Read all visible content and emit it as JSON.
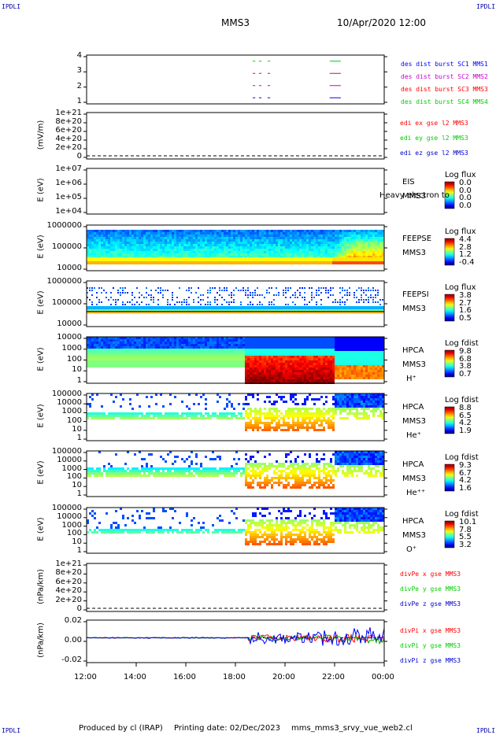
{
  "header": {
    "corner_tl": "IPDLI",
    "corner_tr": "IPDLI",
    "corner_bl": "IPDLI",
    "corner_br": "IPDLI",
    "title": "MMS3",
    "date": "10/Apr/2020 12:00"
  },
  "footer": {
    "produced": "Produced by cl (IRAP)",
    "printing": "Printing date: 02/Dec/2023",
    "file": "mms_mms3_srvy_vue_web2.cl"
  },
  "colors": {
    "mms1": "#0000ff",
    "mms2": "#cc00cc",
    "mms3": "#ff0000",
    "mms4": "#00cc00",
    "text_blue": "#0000aa"
  },
  "chart_data": [
    {
      "type": "line",
      "id": "burst",
      "yticks": [
        "4",
        "3",
        "2",
        "1"
      ],
      "ylim": [
        0.5,
        4.5
      ],
      "legend": [
        "des dist burst SC1 MMS1",
        "des dist burst SC2 MMS2",
        "des dist burst SC3 MMS3",
        "des dist burst SC4 MMS4"
      ],
      "series": [
        {
          "name": "des dist burst SC4 MMS4",
          "level": 4,
          "segments": [
            [
              18.7,
              18.8
            ],
            [
              18.95,
              19.05
            ],
            [
              19.3,
              19.4
            ],
            [
              21.8,
              22.25
            ]
          ]
        },
        {
          "name": "des dist burst SC2 MMS2",
          "level": 3,
          "segments": [
            [
              18.7,
              18.8
            ],
            [
              18.95,
              19.05
            ],
            [
              19.3,
              19.4
            ],
            [
              21.8,
              22.25
            ]
          ]
        },
        {
          "name": "des dist burst SC3 MMS3",
          "level": 2,
          "segments": [
            [
              18.7,
              18.8
            ],
            [
              18.95,
              19.05
            ],
            [
              19.3,
              19.4
            ],
            [
              21.8,
              22.25
            ]
          ]
        },
        {
          "name": "des dist burst SC1 MMS1",
          "level": 1,
          "segments": [
            [
              18.7,
              18.8
            ],
            [
              18.95,
              19.05
            ],
            [
              19.3,
              19.4
            ],
            [
              21.8,
              22.25
            ]
          ]
        }
      ]
    },
    {
      "type": "line",
      "id": "edi",
      "ylabel": "(mV/m)",
      "yticks": [
        "1e+21",
        "8e+20",
        "6e+20",
        "4e+20",
        "2e+20",
        "0"
      ],
      "legend": [
        "edi ex gse l2 MMS3",
        "edi ey gse l2 MMS3",
        "edi ez gse l2 MMS3"
      ]
    },
    {
      "type": "heatmap",
      "id": "eis",
      "ylabel": "E (eV)",
      "yticks": [
        "1e+07",
        "1e+06",
        "1e+05",
        "1e+04"
      ],
      "labels": [
        "EIS",
        "MMS3"
      ],
      "overlay": "Heavy electron to",
      "colorbar": {
        "title": "Log flux",
        "values": [
          "0.0",
          "0.0",
          "0.0",
          "0.0"
        ]
      }
    },
    {
      "type": "heatmap",
      "id": "feepse",
      "ylabel": "E (eV)",
      "yticks": [
        "1000000",
        "100000",
        "10000"
      ],
      "labels": [
        "FEEPSE",
        "MMS3"
      ],
      "colorbar": {
        "title": "Log flux",
        "values": [
          "4.4",
          "2.8",
          "1.2",
          "-0.4"
        ]
      }
    },
    {
      "type": "heatmap",
      "id": "feepsi",
      "ylabel": "E (eV)",
      "yticks": [
        "1000000",
        "100000",
        "10000"
      ],
      "labels": [
        "FEEPSI",
        "MMS3"
      ],
      "colorbar": {
        "title": "Log flux",
        "values": [
          "3.8",
          "2.7",
          "1.6",
          "0.5"
        ]
      }
    },
    {
      "type": "heatmap",
      "id": "hpca_h",
      "ylabel": "E (eV)",
      "yticks": [
        "10000",
        "1000",
        "100",
        "10",
        "1"
      ],
      "labels": [
        "HPCA",
        "MMS3",
        "H⁺"
      ],
      "colorbar": {
        "title": "Log fdist",
        "values": [
          "9.8",
          "6.8",
          "3.8",
          "0.7"
        ]
      }
    },
    {
      "type": "heatmap",
      "id": "hpca_he",
      "ylabel": "E (eV)",
      "yticks": [
        "100000",
        "10000",
        "1000",
        "100",
        "10",
        "1"
      ],
      "labels": [
        "HPCA",
        "MMS3",
        "He⁺"
      ],
      "colorbar": {
        "title": "Log fdist",
        "values": [
          "8.8",
          "6.5",
          "4.2",
          "1.9"
        ]
      }
    },
    {
      "type": "heatmap",
      "id": "hpca_hepp",
      "ylabel": "E (eV)",
      "yticks": [
        "100000",
        "10000",
        "1000",
        "100",
        "10",
        "1"
      ],
      "labels": [
        "HPCA",
        "MMS3",
        "He⁺⁺"
      ],
      "colorbar": {
        "title": "Log fdist",
        "values": [
          "9.3",
          "6.7",
          "4.2",
          "1.6"
        ]
      }
    },
    {
      "type": "heatmap",
      "id": "hpca_o",
      "ylabel": "E (eV)",
      "yticks": [
        "100000",
        "10000",
        "1000",
        "100",
        "10",
        "1"
      ],
      "labels": [
        "HPCA",
        "MMS3",
        "O⁺"
      ],
      "colorbar": {
        "title": "Log fdist",
        "values": [
          "10.1",
          "7.8",
          "5.5",
          "3.2"
        ]
      }
    },
    {
      "type": "line",
      "id": "divpe",
      "ylabel": "(nPa/km)",
      "yticks": [
        "1e+21",
        "8e+20",
        "6e+20",
        "4e+20",
        "2e+20",
        "0"
      ],
      "legend": [
        "divPe x gse MMS3",
        "divPe y gse MMS3",
        "divPe z gse MMS3"
      ]
    },
    {
      "type": "line",
      "id": "divpi",
      "ylabel": "(nPa/km)",
      "yticks": [
        "0.02",
        "0.00",
        "-0.02"
      ],
      "ylim": [
        -0.035,
        0.025
      ],
      "legend": [
        "divPi x gse MMS3",
        "divPi y gse MMS3",
        "divPi z gse MMS3"
      ]
    }
  ],
  "xaxis": {
    "ticks": [
      "12:00",
      "14:00",
      "16:00",
      "18:00",
      "20:00",
      "22:00",
      "00:00"
    ],
    "xlim": [
      12,
      24
    ]
  }
}
